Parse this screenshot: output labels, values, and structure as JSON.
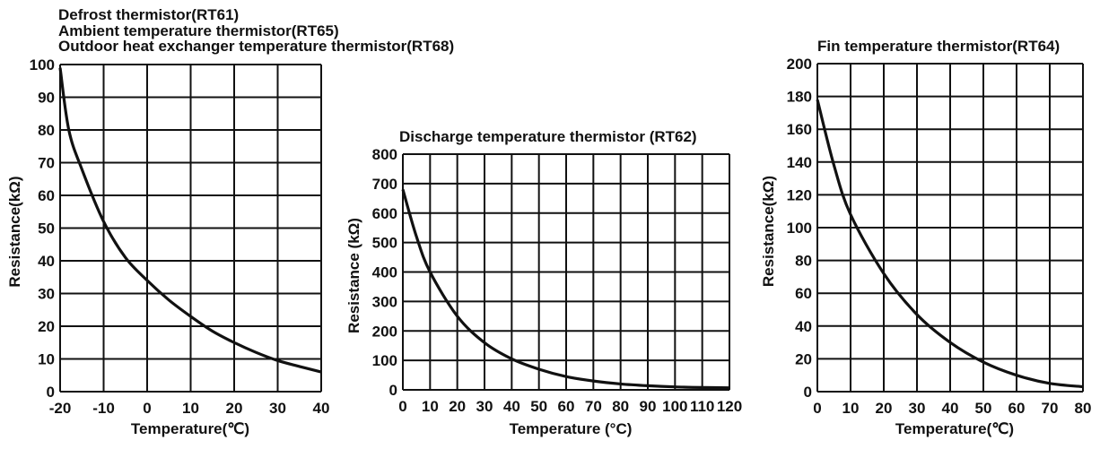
{
  "chart_data": [
    {
      "type": "line",
      "title_lines": [
        "Defrost thermistor(RT61)",
        "Ambient temperature thermistor(RT65)",
        "Outdoor heat exchanger temperature thermistor(RT68)"
      ],
      "xlabel": "Temperature(℃)",
      "ylabel": "Resistance(kΩ)",
      "xlim": [
        -20,
        40
      ],
      "ylim": [
        0,
        100
      ],
      "xticks": [
        "-20",
        "-10",
        "0",
        "10",
        "20",
        "30",
        "40"
      ],
      "yticks": [
        "0",
        "10",
        "20",
        "30",
        "40",
        "50",
        "60",
        "70",
        "80",
        "90",
        "100"
      ],
      "grid": true,
      "x": [
        -20,
        -18,
        -15,
        -10,
        -5,
        0,
        5,
        10,
        15,
        20,
        25,
        30,
        35,
        40
      ],
      "y": [
        99,
        80,
        68,
        52,
        41,
        34,
        28,
        23,
        18.5,
        15,
        12,
        9.5,
        7.7,
        6
      ]
    },
    {
      "type": "line",
      "title_lines": [
        "Discharge temperature thermistor (RT62)"
      ],
      "xlabel": "Temperature (°C)",
      "ylabel": "Resistance (kΩ)",
      "xlim": [
        0,
        120
      ],
      "ylim": [
        0,
        800
      ],
      "xticks": [
        "0",
        "10",
        "20",
        "30",
        "40",
        "50",
        "60",
        "70",
        "80",
        "90",
        "100",
        "110",
        "120"
      ],
      "yticks": [
        "0",
        "100",
        "200",
        "300",
        "400",
        "500",
        "600",
        "700",
        "800"
      ],
      "grid": true,
      "x": [
        0,
        5,
        10,
        20,
        30,
        40,
        50,
        60,
        70,
        80,
        90,
        100,
        110,
        120
      ],
      "y": [
        680,
        520,
        400,
        250,
        160,
        105,
        70,
        45,
        30,
        20,
        14,
        10,
        8,
        7
      ]
    },
    {
      "type": "line",
      "title_lines": [
        "Fin temperature thermistor(RT64)"
      ],
      "xlabel": "Temperature(℃)",
      "ylabel": "Resistance(kΩ)",
      "xlim": [
        0,
        80
      ],
      "ylim": [
        0,
        200
      ],
      "xticks": [
        "0",
        "10",
        "20",
        "30",
        "40",
        "50",
        "60",
        "70",
        "80"
      ],
      "yticks": [
        "0",
        "20",
        "40",
        "60",
        "80",
        "100",
        "120",
        "140",
        "160",
        "180",
        "200"
      ],
      "grid": true,
      "x": [
        0,
        5,
        10,
        20,
        30,
        40,
        50,
        60,
        70,
        80
      ],
      "y": [
        178,
        138,
        108,
        72,
        47,
        30,
        18,
        10,
        5,
        3
      ]
    }
  ]
}
